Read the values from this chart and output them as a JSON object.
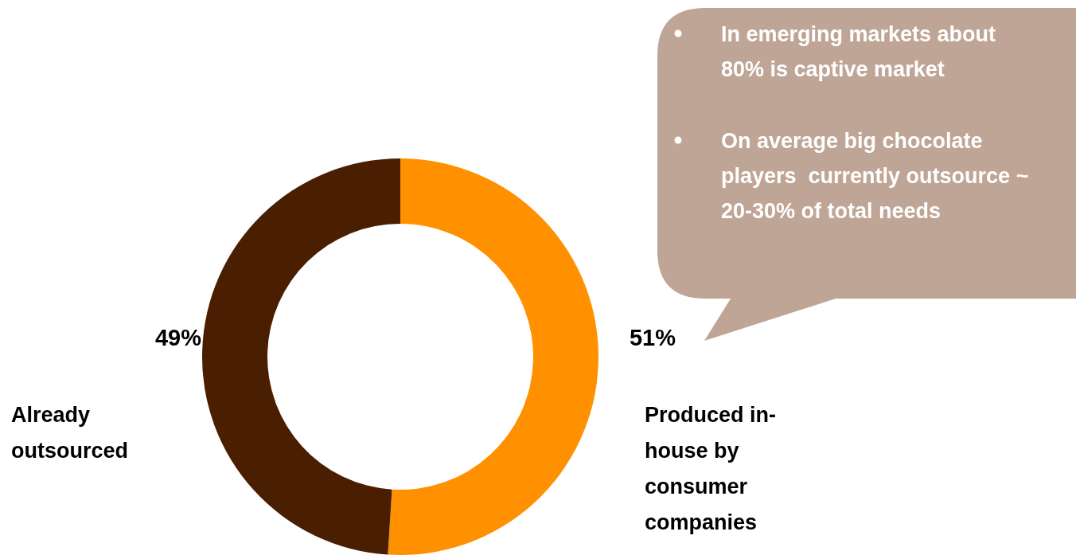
{
  "chart_data": {
    "type": "donut",
    "categories": [
      "Produced in-house by consumer companies",
      "Already outsourced"
    ],
    "values": [
      51,
      49
    ],
    "colors": [
      "#ff9100",
      "#4a1e00"
    ],
    "value_labels": [
      "51%",
      "49%"
    ],
    "annotations": [
      "In emerging markets about 80% is captive market",
      "On average big chocolate players  currently outsource ~ 20-30% of total needs"
    ]
  }
}
